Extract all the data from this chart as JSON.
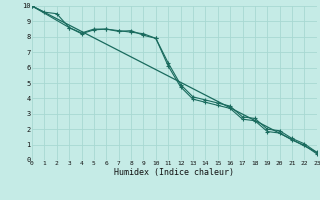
{
  "xlabel": "Humidex (Indice chaleur)",
  "bg_color": "#c5ebe6",
  "grid_color": "#a8d8d2",
  "line_color": "#1a6b5e",
  "xlim": [
    0,
    23
  ],
  "ylim": [
    0,
    10
  ],
  "xticks": [
    0,
    1,
    2,
    3,
    4,
    5,
    6,
    7,
    8,
    9,
    10,
    11,
    12,
    13,
    14,
    15,
    16,
    17,
    18,
    19,
    20,
    21,
    22,
    23
  ],
  "yticks": [
    0,
    1,
    2,
    3,
    4,
    5,
    6,
    7,
    8,
    9,
    10
  ],
  "line1_x": [
    0,
    1,
    2,
    3,
    4,
    5,
    6,
    7,
    8,
    9,
    10,
    11,
    12,
    13,
    14,
    15,
    16,
    17,
    18,
    19,
    20,
    21,
    22,
    23
  ],
  "line1_y": [
    10,
    9.6,
    9.5,
    8.6,
    8.25,
    8.5,
    8.5,
    8.35,
    8.4,
    8.1,
    7.9,
    6.3,
    4.9,
    4.1,
    3.9,
    3.7,
    3.5,
    2.8,
    2.7,
    2.0,
    1.9,
    1.4,
    1.05,
    0.5
  ],
  "line2_x": [
    0,
    3,
    4,
    5,
    6,
    7,
    8,
    9,
    10,
    11,
    12,
    13,
    14,
    15,
    16,
    17,
    18,
    19,
    20,
    21,
    22,
    23
  ],
  "line2_y": [
    10,
    8.6,
    8.2,
    8.45,
    8.5,
    8.4,
    8.3,
    8.2,
    7.9,
    6.1,
    4.75,
    3.95,
    3.75,
    3.55,
    3.35,
    2.65,
    2.55,
    1.85,
    1.75,
    1.3,
    0.95,
    0.4
  ],
  "line3_x": [
    0,
    23
  ],
  "line3_y": [
    10,
    0.5
  ]
}
